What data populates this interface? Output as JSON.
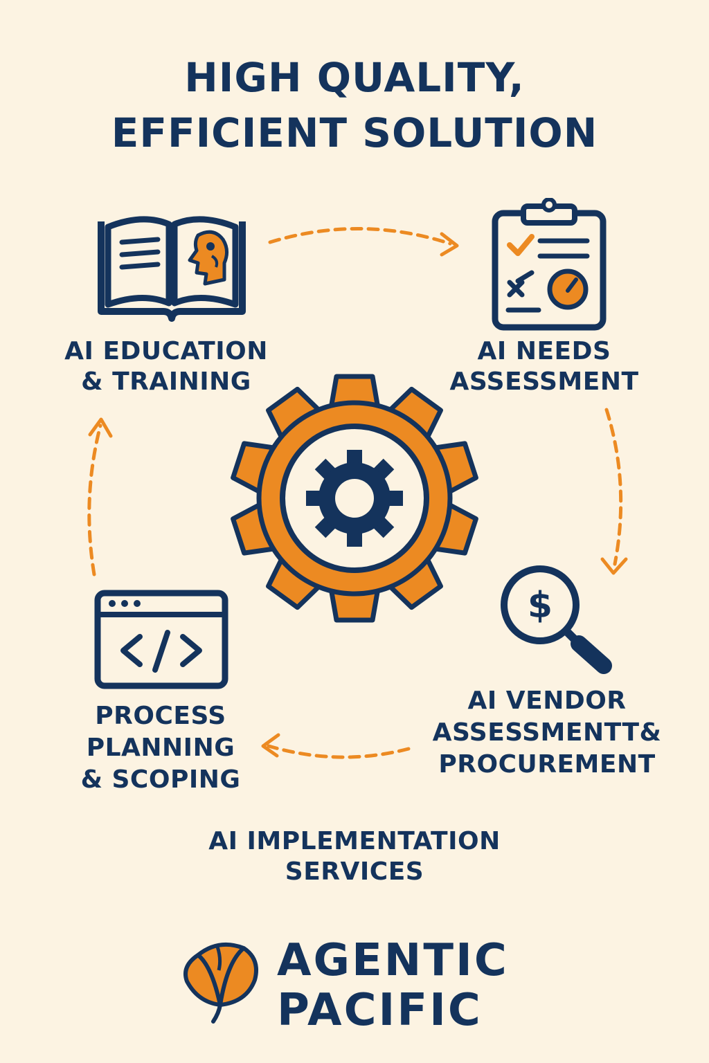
{
  "title": {
    "line1": "HIGH QUALITY,",
    "line2": "EFFICIENT SOLUTION"
  },
  "steps": [
    {
      "lines": [
        "AI EDUCATION",
        "& TRAINING"
      ],
      "icon": "book-head-icon"
    },
    {
      "lines": [
        "AI NEEDS",
        "ASSESSMENT"
      ],
      "icon": "clipboard-checklist-icon"
    },
    {
      "lines": [
        "AI VENDOR",
        "ASSESSMENTT&",
        "PROCUREMENT"
      ],
      "icon": "dollar-magnifier-icon"
    },
    {
      "lines": [
        "PROCESS",
        "PLANNING",
        "& SCOPING"
      ],
      "icon": "code-window-icon"
    }
  ],
  "center": {
    "icon": "gear-icon"
  },
  "caption": {
    "line1": "AI IMPLEMENTATION",
    "line2": "SERVICES"
  },
  "brand": {
    "line1": "AGENTIC",
    "line2": "PACIFIC",
    "logo": "poppy-flower-logo"
  },
  "colors": {
    "navy": "#14335c",
    "orange": "#ec8a22",
    "background": "#fcf3e2"
  }
}
